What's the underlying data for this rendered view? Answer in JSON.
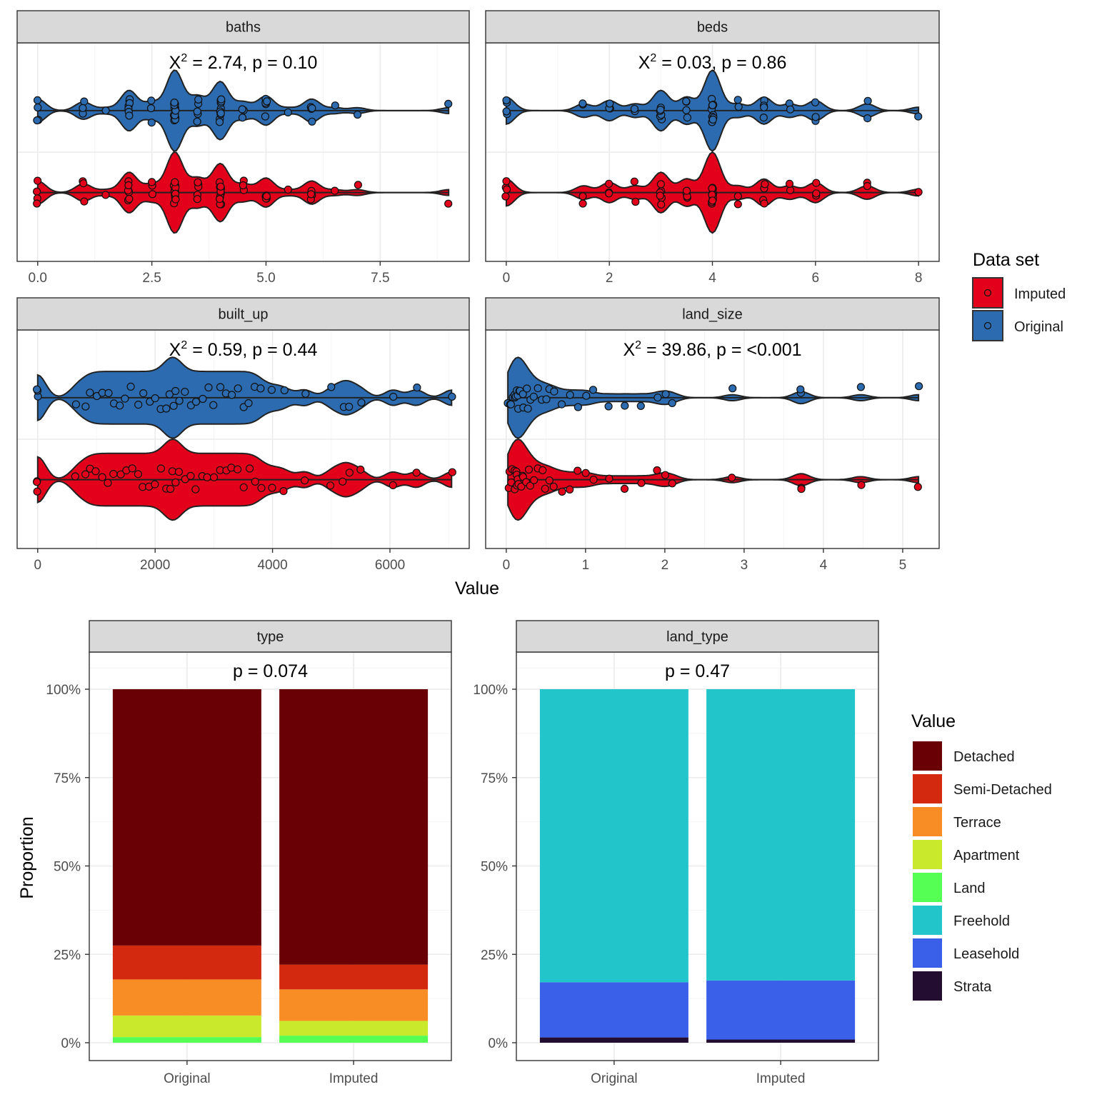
{
  "colors": {
    "imputed": "#E3001A",
    "original": "#2C6BAF",
    "strip_bg": "#D9D9D9",
    "grid_major": "#EBEBEB",
    "grid_minor": "#F4F4F4"
  },
  "legend_dataset": {
    "title": "Data set",
    "items": [
      {
        "label": "Imputed",
        "color": "#E3001A"
      },
      {
        "label": "Original",
        "color": "#2C6BAF"
      }
    ]
  },
  "legend_value": {
    "title": "Value",
    "items": [
      {
        "label": "Detached",
        "color": "#680006"
      },
      {
        "label": "Semi-Detached",
        "color": "#D3290F"
      },
      {
        "label": "Terrace",
        "color": "#F98D25"
      },
      {
        "label": "Apartment",
        "color": "#C9EA2C"
      },
      {
        "label": "Land",
        "color": "#56FF53"
      },
      {
        "label": "Freehold",
        "color": "#22C5CA"
      },
      {
        "label": "Leasehold",
        "color": "#3A5FE8"
      },
      {
        "label": "Strata",
        "color": "#230D31"
      }
    ]
  },
  "axis_titles": {
    "x_top": "Value",
    "y_bottom": "Proportion"
  },
  "chart_data": [
    {
      "type": "violin",
      "title": "baths",
      "stat": {
        "lead": "X",
        "sup": "2",
        "text": " = 2.74, p = 0.10"
      },
      "xlim": [
        -0.45,
        9.45
      ],
      "ticks": [
        0,
        2.5,
        5,
        7.5
      ],
      "tick_labels": [
        "0.0",
        "2.5",
        "5.0",
        "7.5"
      ],
      "series": [
        {
          "name": "Original",
          "values": [
            0,
            0,
            0,
            0,
            1,
            1,
            1,
            1.5,
            2,
            2,
            2,
            2,
            2,
            2,
            2,
            2.5,
            2.5,
            2.5,
            3,
            3,
            3,
            3,
            3,
            3,
            3,
            3,
            3,
            3,
            3,
            3,
            3,
            3,
            3.5,
            3.5,
            3.5,
            3.5,
            3.5,
            4,
            4,
            4,
            4,
            4,
            4,
            4,
            4,
            4,
            4,
            4.5,
            4.5,
            4.5,
            5,
            5,
            5,
            5,
            5,
            5.5,
            6,
            6,
            6,
            6,
            6.5,
            7,
            9
          ]
        },
        {
          "name": "Imputed",
          "values": [
            0,
            0,
            0,
            0,
            1,
            1,
            1,
            1.5,
            2,
            2,
            2,
            2,
            2,
            2,
            2,
            2.5,
            2.5,
            2.5,
            3,
            3,
            3,
            3,
            3,
            3,
            3,
            3,
            3,
            3,
            3,
            3,
            3,
            3,
            3.5,
            3.5,
            3.5,
            3.5,
            3.5,
            4,
            4,
            4,
            4,
            4,
            4,
            4,
            4,
            4,
            4,
            4.5,
            4.5,
            4.5,
            5,
            5,
            5,
            5,
            5,
            5.5,
            6,
            6,
            6,
            6,
            6.5,
            7,
            9
          ]
        }
      ]
    },
    {
      "type": "violin",
      "title": "beds",
      "stat": {
        "lead": "X",
        "sup": "2",
        "text": " = 0.03, p = 0.86"
      },
      "xlim": [
        -0.4,
        8.4
      ],
      "ticks": [
        0,
        2,
        4,
        6,
        8
      ],
      "tick_labels": [
        "0",
        "2",
        "4",
        "6",
        "8"
      ],
      "series": [
        {
          "name": "Original",
          "values": [
            0,
            0,
            0,
            0,
            1.5,
            1.5,
            2,
            2,
            2,
            2.5,
            2.5,
            3,
            3,
            3,
            3,
            3,
            3,
            3.5,
            3.5,
            3.5,
            3.5,
            4,
            4,
            4,
            4,
            4,
            4,
            4,
            4,
            4,
            4,
            4,
            4,
            4.5,
            4.5,
            5,
            5,
            5,
            5,
            5.5,
            5.5,
            6,
            6,
            6,
            7,
            7,
            8
          ]
        },
        {
          "name": "Imputed",
          "values": [
            0,
            0,
            0,
            0,
            1.5,
            1.5,
            2,
            2,
            2,
            2.5,
            2.5,
            3,
            3,
            3,
            3,
            3,
            3,
            3.5,
            3.5,
            3.5,
            3.5,
            4,
            4,
            4,
            4,
            4,
            4,
            4,
            4,
            4,
            4,
            4,
            4,
            4.5,
            4.5,
            5,
            5,
            5,
            5,
            5.5,
            5.5,
            6,
            6,
            6,
            7,
            7,
            8
          ]
        }
      ]
    },
    {
      "type": "violin",
      "title": "built_up",
      "stat": {
        "lead": "X",
        "sup": "2",
        "text": " = 0.59, p = 0.44"
      },
      "xlim": [
        -350,
        7350
      ],
      "ticks": [
        0,
        2000,
        4000,
        6000
      ],
      "tick_labels": [
        "0",
        "2000",
        "4000",
        "6000"
      ],
      "series": [
        {
          "name": "Original",
          "values": [
            0,
            0,
            0,
            650,
            800,
            900,
            1000,
            1100,
            1200,
            1300,
            1400,
            1500,
            1600,
            1700,
            1800,
            1900,
            2000,
            2100,
            2200,
            2250,
            2300,
            2350,
            2400,
            2500,
            2600,
            2700,
            2800,
            2900,
            3000,
            3100,
            3200,
            3300,
            3400,
            3500,
            3600,
            3700,
            3800,
            4000,
            4200,
            4550,
            5000,
            5200,
            5300,
            5500,
            6050,
            6450,
            7050
          ]
        },
        {
          "name": "Imputed",
          "values": [
            0,
            0,
            0,
            650,
            800,
            900,
            1000,
            1100,
            1200,
            1300,
            1400,
            1500,
            1600,
            1700,
            1800,
            1900,
            2000,
            2100,
            2200,
            2250,
            2300,
            2350,
            2400,
            2500,
            2600,
            2700,
            2800,
            2900,
            3000,
            3100,
            3200,
            3300,
            3400,
            3500,
            3600,
            3700,
            3800,
            4000,
            4200,
            4550,
            5000,
            5200,
            5300,
            5500,
            6050,
            6450,
            7050
          ]
        }
      ]
    },
    {
      "type": "violin",
      "title": "land_size",
      "stat": {
        "lead": "X",
        "sup": "2",
        "text": " = 39.86, p = <0.001"
      },
      "xlim": [
        -0.26,
        5.46
      ],
      "ticks": [
        0,
        1,
        2,
        3,
        4,
        5
      ],
      "tick_labels": [
        "0",
        "1",
        "2",
        "3",
        "4",
        "5"
      ],
      "series": [
        {
          "name": "Original",
          "values": [
            0.02,
            0.04,
            0.06,
            0.08,
            0.1,
            0.11,
            0.12,
            0.13,
            0.14,
            0.15,
            0.16,
            0.18,
            0.2,
            0.22,
            0.25,
            0.28,
            0.3,
            0.35,
            0.4,
            0.45,
            0.5,
            0.55,
            0.6,
            0.7,
            0.8,
            0.9,
            1.0,
            1.1,
            1.3,
            1.5,
            1.7,
            1.9,
            2.0,
            2.1,
            2.85,
            3.72,
            3.72,
            4.47,
            5.2
          ]
        },
        {
          "name": "Imputed",
          "values": [
            0.02,
            0.04,
            0.06,
            0.08,
            0.1,
            0.11,
            0.12,
            0.13,
            0.14,
            0.15,
            0.16,
            0.18,
            0.2,
            0.22,
            0.25,
            0.28,
            0.3,
            0.35,
            0.4,
            0.45,
            0.5,
            0.55,
            0.6,
            0.7,
            0.8,
            0.9,
            1.0,
            1.1,
            1.3,
            1.5,
            1.7,
            1.9,
            2.0,
            2.1,
            2.85,
            3.72,
            3.72,
            4.47,
            5.2
          ]
        }
      ]
    },
    {
      "type": "bar",
      "title": "type",
      "stat": {
        "text": "p = 0.074"
      },
      "categories": [
        "Original",
        "Imputed"
      ],
      "ylim": [
        0,
        1
      ],
      "y_ticks": [
        "0%",
        "25%",
        "50%",
        "75%",
        "100%"
      ],
      "series": [
        {
          "name": "Land",
          "values": [
            0.016,
            0.02
          ]
        },
        {
          "name": "Apartment",
          "values": [
            0.061,
            0.042
          ]
        },
        {
          "name": "Terrace",
          "values": [
            0.102,
            0.089
          ]
        },
        {
          "name": "Semi-Detached",
          "values": [
            0.096,
            0.07
          ]
        },
        {
          "name": "Detached",
          "values": [
            0.725,
            0.779
          ]
        }
      ]
    },
    {
      "type": "bar",
      "title": "land_type",
      "stat": {
        "text": "p = 0.47"
      },
      "categories": [
        "Original",
        "Imputed"
      ],
      "ylim": [
        0,
        1
      ],
      "y_ticks": [
        "0%",
        "25%",
        "50%",
        "75%",
        "100%"
      ],
      "series": [
        {
          "name": "Strata",
          "values": [
            0.015,
            0.009
          ]
        },
        {
          "name": "Leasehold",
          "values": [
            0.156,
            0.167
          ]
        },
        {
          "name": "Freehold",
          "values": [
            0.829,
            0.824
          ]
        }
      ]
    }
  ]
}
